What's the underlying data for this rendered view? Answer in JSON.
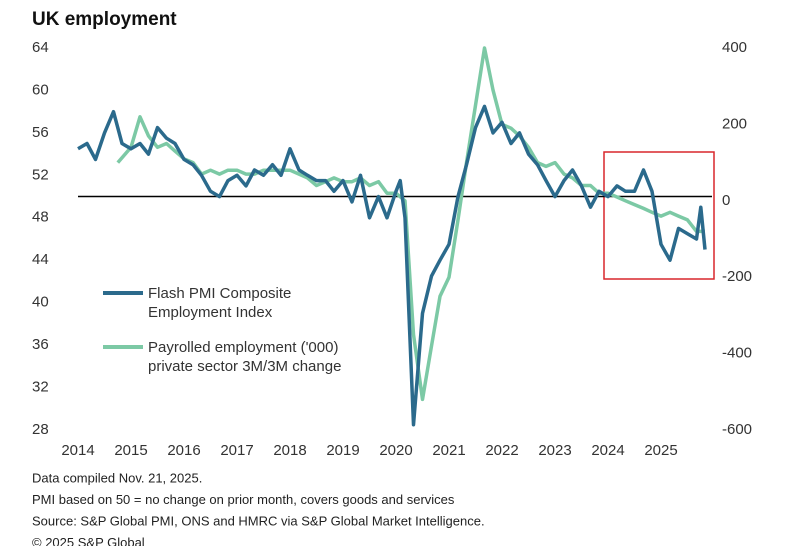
{
  "chart_data": {
    "type": "line",
    "title": "UK employment",
    "xlim": [
      2014,
      2026
    ],
    "xticks": [
      2014,
      2015,
      2016,
      2017,
      2018,
      2019,
      2020,
      2021,
      2022,
      2023,
      2024,
      2025
    ],
    "ylim": [
      28,
      64
    ],
    "yticks": [
      28,
      32,
      36,
      40,
      44,
      48,
      52,
      56,
      60,
      64
    ],
    "y2lim": [
      -600,
      400
    ],
    "y2ticks": [
      -600,
      -400,
      -200,
      0,
      200,
      400
    ],
    "reference_line": 50,
    "legend": "left",
    "series": [
      {
        "name": "Flash PMI Composite Employment Index",
        "color": "#2b6a8c",
        "x": [
          2014.0,
          2014.17,
          2014.33,
          2014.5,
          2014.67,
          2014.83,
          2015.0,
          2015.17,
          2015.33,
          2015.5,
          2015.67,
          2015.83,
          2016.0,
          2016.17,
          2016.33,
          2016.5,
          2016.67,
          2016.83,
          2017.0,
          2017.17,
          2017.33,
          2017.5,
          2017.67,
          2017.83,
          2018.0,
          2018.17,
          2018.33,
          2018.5,
          2018.67,
          2018.83,
          2019.0,
          2019.17,
          2019.33,
          2019.5,
          2019.67,
          2019.83,
          2020.0,
          2020.08,
          2020.17,
          2020.33,
          2020.5,
          2020.67,
          2020.83,
          2021.0,
          2021.17,
          2021.33,
          2021.5,
          2021.67,
          2021.83,
          2022.0,
          2022.17,
          2022.33,
          2022.5,
          2022.67,
          2022.83,
          2023.0,
          2023.17,
          2023.33,
          2023.5,
          2023.67,
          2023.83,
          2024.0,
          2024.17,
          2024.33,
          2024.5,
          2024.67,
          2024.83,
          2025.0,
          2025.17,
          2025.33,
          2025.5,
          2025.67,
          2025.75,
          2025.83
        ],
        "values": [
          54.5,
          55,
          53.5,
          56,
          58,
          55,
          54.5,
          55,
          54,
          56.5,
          55.5,
          55,
          53.5,
          53,
          52,
          50.5,
          50,
          51.5,
          52,
          51,
          52.5,
          52,
          53,
          52,
          54.5,
          52.5,
          52,
          51.5,
          51.5,
          50.5,
          51.5,
          49.5,
          52,
          48,
          50,
          48,
          50.5,
          51.5,
          48,
          28.5,
          39,
          42.5,
          44,
          45.5,
          50,
          53,
          56.5,
          58.5,
          56,
          57,
          55,
          56,
          54,
          53,
          51.5,
          50,
          51.5,
          52.5,
          51,
          49,
          50.5,
          50,
          51,
          50.5,
          50.5,
          52.5,
          50.5,
          45.5,
          44,
          47,
          46.5,
          46,
          49,
          45
        ]
      },
      {
        "name": "Payrolled employment ('000) private sector 3M/3M change",
        "color": "#7cc9a5",
        "axis": "y2",
        "x": [
          2014.75,
          2015.0,
          2015.17,
          2015.33,
          2015.5,
          2015.67,
          2015.83,
          2016.0,
          2016.17,
          2016.33,
          2016.5,
          2016.67,
          2016.83,
          2017.0,
          2017.17,
          2017.33,
          2017.5,
          2017.67,
          2017.83,
          2018.0,
          2018.17,
          2018.33,
          2018.5,
          2018.67,
          2018.83,
          2019.0,
          2019.17,
          2019.33,
          2019.5,
          2019.67,
          2019.83,
          2020.0,
          2020.17,
          2020.33,
          2020.5,
          2020.67,
          2020.83,
          2021.0,
          2021.17,
          2021.33,
          2021.5,
          2021.67,
          2021.83,
          2022.0,
          2022.17,
          2022.33,
          2022.5,
          2022.67,
          2022.83,
          2023.0,
          2023.17,
          2023.33,
          2023.5,
          2023.67,
          2023.83,
          2024.0,
          2024.17,
          2024.33,
          2024.5,
          2024.67,
          2024.83,
          2025.0,
          2025.17,
          2025.33,
          2025.5,
          2025.67,
          2025.83
        ],
        "values": [
          100,
          140,
          220,
          170,
          140,
          150,
          130,
          110,
          100,
          70,
          80,
          70,
          80,
          80,
          70,
          70,
          80,
          80,
          80,
          80,
          70,
          60,
          40,
          50,
          60,
          50,
          50,
          60,
          40,
          50,
          20,
          20,
          0,
          -350,
          -520,
          -380,
          -250,
          -200,
          -50,
          100,
          250,
          400,
          290,
          200,
          190,
          170,
          140,
          100,
          90,
          100,
          70,
          60,
          40,
          40,
          20,
          20,
          10,
          0,
          -10,
          -20,
          -30,
          -40,
          -30,
          -40,
          -50,
          -80,
          -80
        ]
      }
    ],
    "notes": [
      "Data compiled Nov. 21, 2025.",
      "PMI based on 50 = no change on prior month, covers goods and services",
      "Source: S&P Global PMI, ONS and HMRC via S&P Global Market Intelligence.",
      "© 2025 S&P Global"
    ]
  }
}
